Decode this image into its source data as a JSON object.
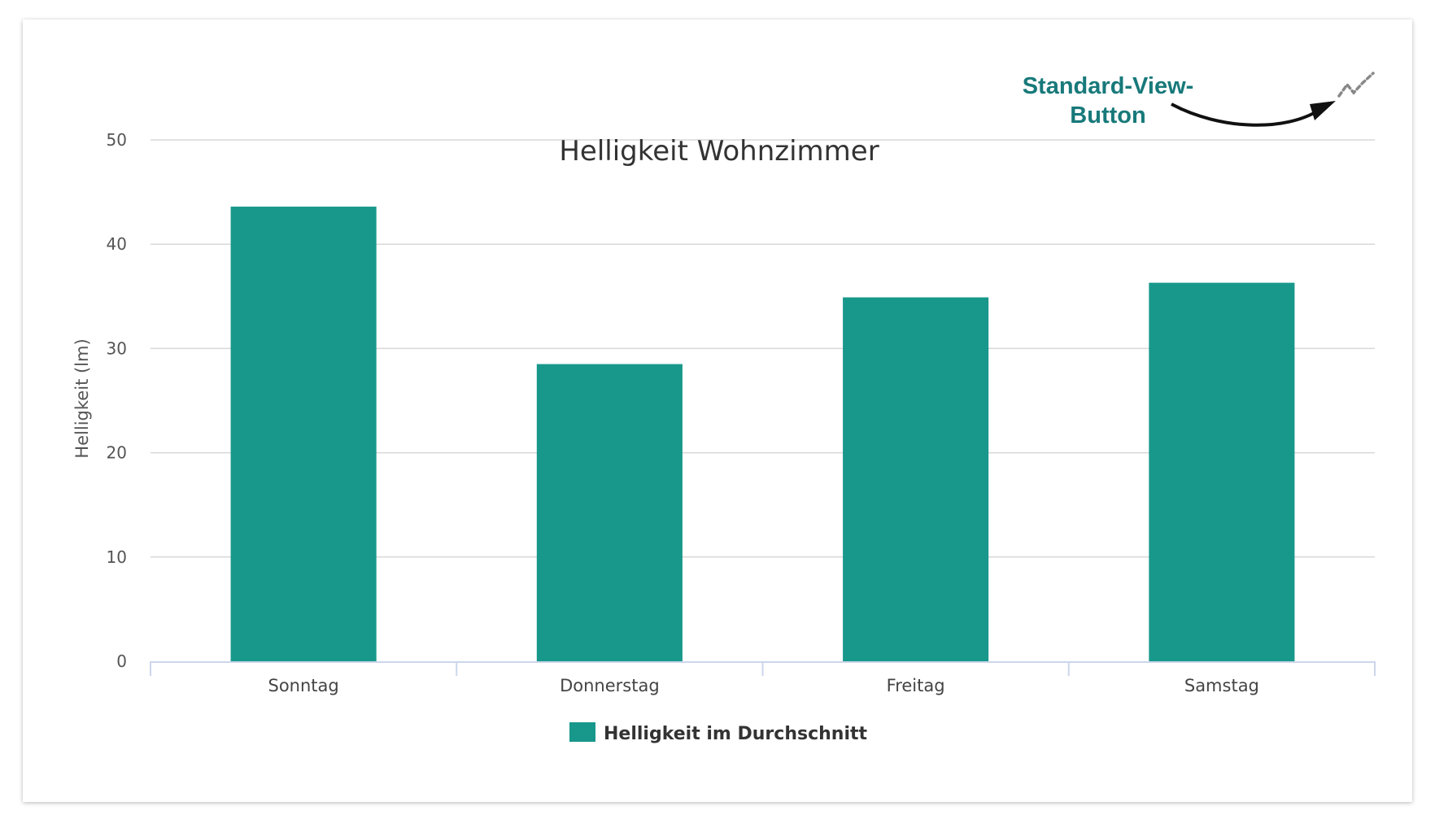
{
  "chart_data": {
    "type": "bar",
    "title": "Helligkeit Wohnzimmer",
    "xlabel": "",
    "ylabel": "Helligkeit (lm)",
    "categories": [
      "Sonntag",
      "Donnerstag",
      "Freitag",
      "Samstag"
    ],
    "series": [
      {
        "name": "Helligkeit im Durchschnitt",
        "values": [
          43.6,
          28.5,
          34.9,
          36.3
        ]
      }
    ],
    "ylim": [
      0,
      50
    ],
    "yticks": [
      0,
      10,
      20,
      30,
      40,
      50
    ],
    "grid": true,
    "legend": "bottom-center",
    "colors": {
      "bar": "#18988b",
      "grid": "#d8d8d8",
      "axis": "#ccd6eb",
      "annotation": "#18797a"
    }
  },
  "annotation": {
    "line1": "Standard-View-",
    "line2": "Button",
    "icon": "line-chart-reset-icon"
  }
}
